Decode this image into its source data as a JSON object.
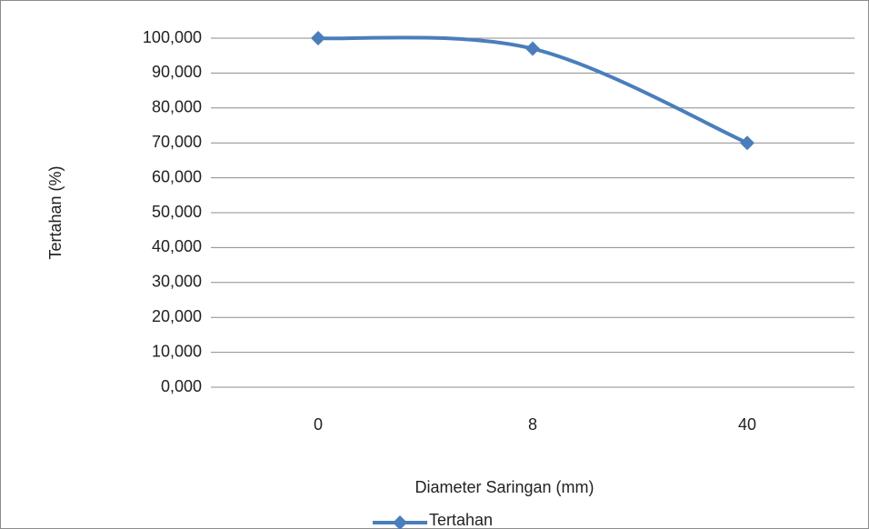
{
  "chart_data": {
    "type": "line",
    "x_label": "Diameter Saringan (mm)",
    "y_label": "Tertahan (%)",
    "categories": [
      "0",
      "8",
      "40"
    ],
    "series": [
      {
        "name": "Tertahan",
        "color": "#4a7ebb",
        "values": [
          100,
          97,
          70
        ]
      }
    ],
    "ylim": [
      0,
      100
    ],
    "yticks": [
      {
        "value": 0,
        "label": "0,000"
      },
      {
        "value": 10,
        "label": "10,000"
      },
      {
        "value": 20,
        "label": "20,000"
      },
      {
        "value": 30,
        "label": "30,000"
      },
      {
        "value": 40,
        "label": "40,000"
      },
      {
        "value": 50,
        "label": "50,000"
      },
      {
        "value": 60,
        "label": "60,000"
      },
      {
        "value": 70,
        "label": "70,000"
      },
      {
        "value": 80,
        "label": "80,000"
      },
      {
        "value": 90,
        "label": "90,000"
      },
      {
        "value": 100,
        "label": "100,000"
      }
    ],
    "grid": true,
    "smooth": true,
    "legend": "bottom"
  }
}
